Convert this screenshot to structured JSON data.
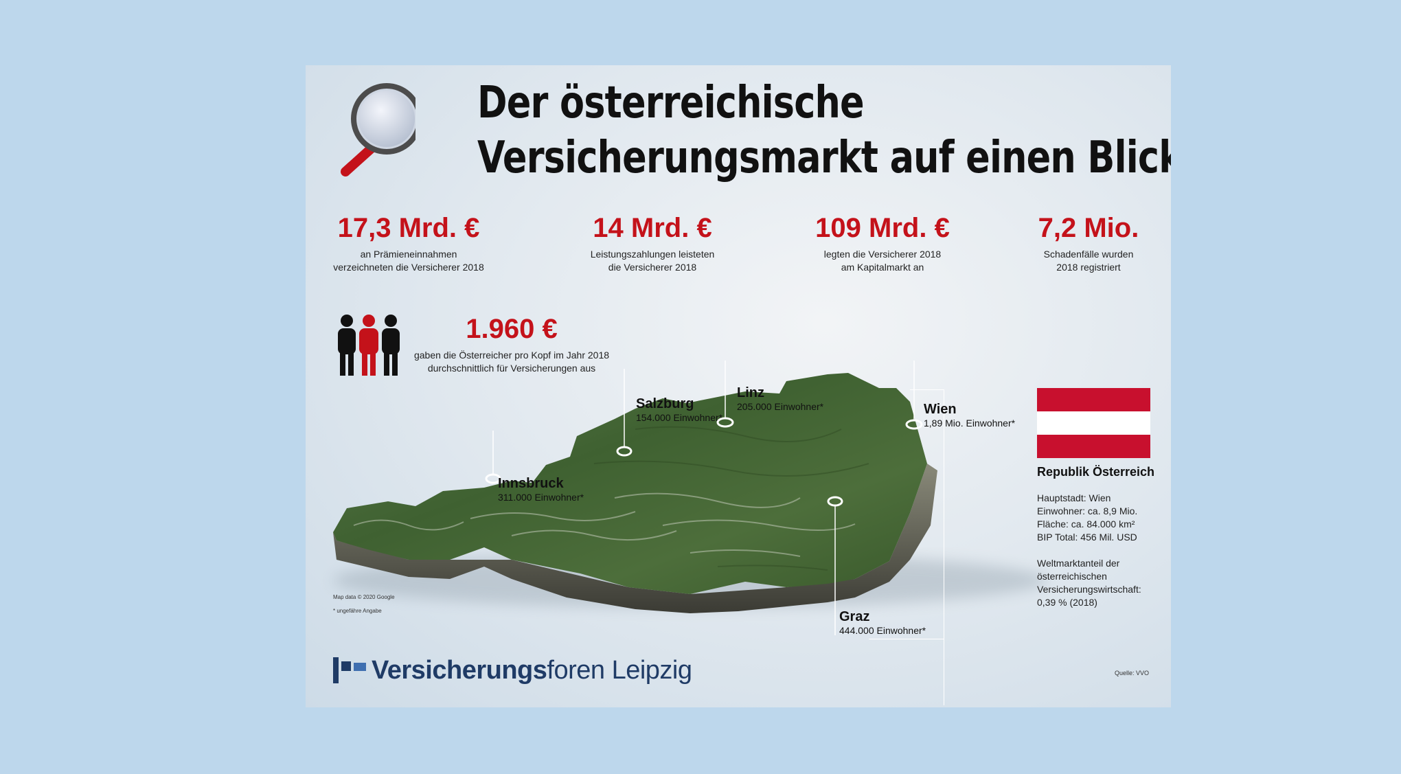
{
  "title": {
    "line1": "Der österreichische",
    "line2": "Versicherungsmarkt auf einen Blick"
  },
  "stats": [
    {
      "value": "17,3 Mrd. €",
      "desc1": "an Prämieneinnahmen",
      "desc2": "verzeichneten die Versicherer 2018"
    },
    {
      "value": "14 Mrd. €",
      "desc1": "Leistungszahlungen leisteten",
      "desc2": "die Versicherer 2018"
    },
    {
      "value": "109 Mrd. €",
      "desc1": "legten die Versicherer 2018",
      "desc2": "am Kapitalmarkt an"
    },
    {
      "value": "7,2 Mio.",
      "desc1": "Schadenfälle wurden",
      "desc2": "2018 registriert"
    }
  ],
  "per_capita": {
    "value": "1.960 €",
    "desc1": "gaben die Österreicher pro Kopf im Jahr 2018",
    "desc2": "durchschnittlich für Versicherungen aus"
  },
  "cities": [
    {
      "name": "Salzburg",
      "pop": "154.000 Einwohner*"
    },
    {
      "name": "Linz",
      "pop": "205.000 Einwohner*"
    },
    {
      "name": "Wien",
      "pop": "1,89 Mio. Einwohner*"
    },
    {
      "name": "Innsbruck",
      "pop": "311.000 Einwohner*"
    },
    {
      "name": "Graz",
      "pop": "444.000 Einwohner*"
    }
  ],
  "country": {
    "name": "Republik Österreich",
    "capital": "Hauptstadt: Wien",
    "population": "Einwohner: ca. 8,9 Mio.",
    "area": "Fläche: ca. 84.000 km²",
    "gdp": "BIP Total: 456 Mil. USD",
    "share1": "Weltmarktanteil der",
    "share2": "österreichischen",
    "share3": "Versicherungswirtschaft:",
    "share4": "0,39 % (2018)"
  },
  "notes": {
    "map_data": "Map data © 2020 Google",
    "approx": "* ungefähre Angabe",
    "source": "Quelle: VVO"
  },
  "logo": {
    "bold": "Versicherungs",
    "regular": "foren Leipzig"
  },
  "colors": {
    "accent_red": "#c4121a",
    "logo_blue": "#1f3b66",
    "flag_red": "#c8102e"
  }
}
